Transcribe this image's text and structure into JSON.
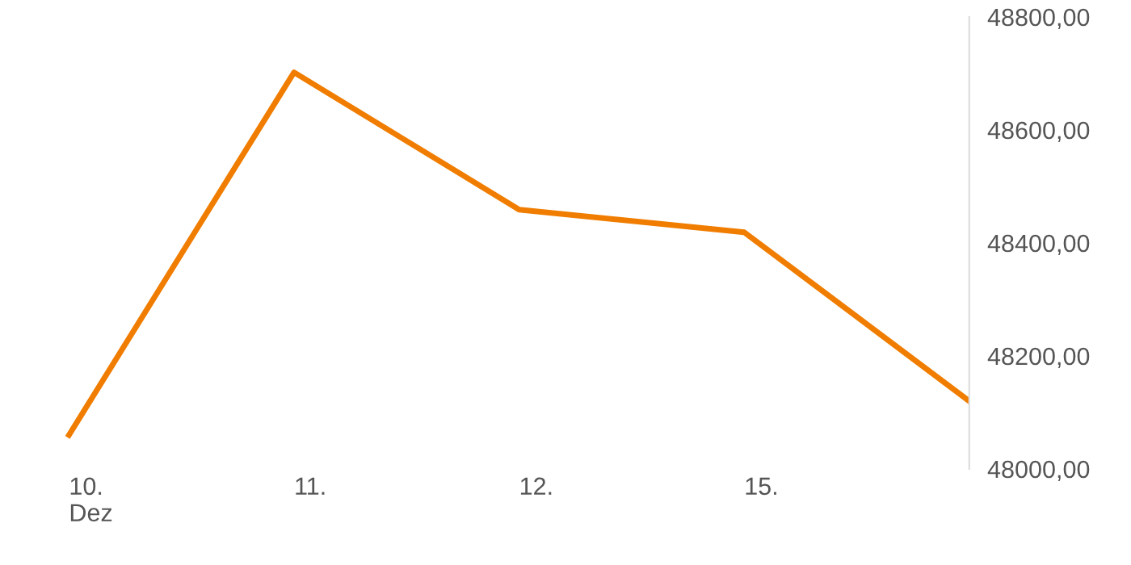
{
  "chart_data": {
    "type": "line",
    "categories": [
      "10.\nDez",
      "11.",
      "12.",
      "15.",
      null
    ],
    "series": [
      {
        "color": "#f07d00",
        "values": [
          48060,
          48702,
          48459,
          48419,
          48120
        ]
      }
    ],
    "ylim": [
      48000,
      48800
    ],
    "yticks": [
      {
        "value": 48000,
        "label": "48000,00"
      },
      {
        "value": 48200,
        "label": "48200,00"
      },
      {
        "value": 48400,
        "label": "48400,00"
      },
      {
        "value": 48600,
        "label": "48600,00"
      },
      {
        "value": 48800,
        "label": "48800,00"
      }
    ],
    "grid": false,
    "legend": false,
    "marker": "none",
    "line_style": "solid"
  }
}
